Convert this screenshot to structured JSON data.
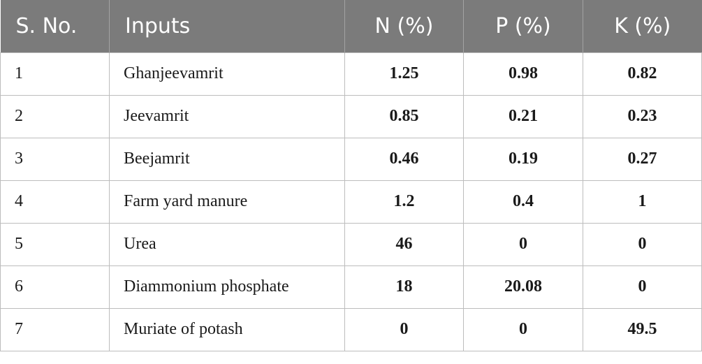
{
  "table": {
    "headers": [
      "S. No.",
      "Inputs",
      "N (%)",
      "P (%)",
      "K (%)"
    ],
    "rows": [
      [
        "1",
        "Ghanjeevamrit",
        "1.25",
        "0.98",
        "0.82"
      ],
      [
        "2",
        "Jeevamrit",
        "0.85",
        "0.21",
        "0.23"
      ],
      [
        "3",
        "Beejamrit",
        "0.46",
        "0.19",
        "0.27"
      ],
      [
        "4",
        "Farm yard manure",
        "1.2",
        "0.4",
        "1"
      ],
      [
        "5",
        "Urea",
        "46",
        "0",
        "0"
      ],
      [
        "6",
        "Diammonium phosphate",
        "18",
        "20.08",
        "0"
      ],
      [
        "7",
        "Muriate of potash",
        "0",
        "0",
        "49.5"
      ]
    ]
  },
  "colors": {
    "header_background": "#7b7b7b",
    "header_text": "#ffffff",
    "grid_lines": "#bdbdbd"
  }
}
